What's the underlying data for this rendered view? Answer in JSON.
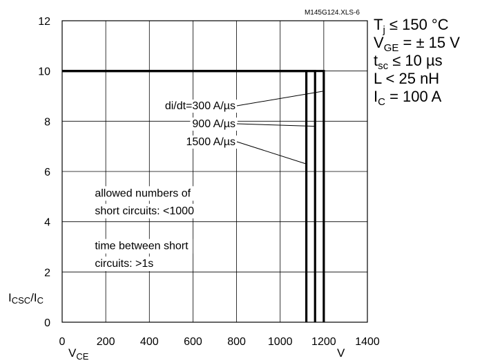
{
  "chart_data": {
    "type": "line",
    "code": "M145G124.XLS-6",
    "ylabel": {
      "main": "I",
      "sub1": "CSC",
      "mid": "/I",
      "sub2": "C"
    },
    "xlabel": {
      "main": "V",
      "sub": "CE"
    },
    "xunit": "V",
    "xlim": [
      0,
      1400
    ],
    "ylim": [
      0,
      12
    ],
    "xticks": [
      0,
      200,
      400,
      600,
      800,
      1000,
      1200,
      1400
    ],
    "yticks": [
      0,
      2,
      4,
      6,
      8,
      10,
      12
    ],
    "grid": true,
    "series": [
      {
        "name": "di/dt=300 A/µs",
        "x": [
          0,
          1200,
          1200
        ],
        "y": [
          10,
          10,
          0
        ]
      },
      {
        "name": "900 A/µs",
        "x": [
          0,
          1160,
          1160
        ],
        "y": [
          10,
          10,
          0
        ]
      },
      {
        "name": "1500 A/µs",
        "x": [
          0,
          1120,
          1120
        ],
        "y": [
          10,
          10,
          0
        ]
      }
    ],
    "annotations": [
      {
        "text": "allowed numbers of",
        "x": 150,
        "y": 5.0
      },
      {
        "text": "short circuits: <1000",
        "x": 150,
        "y": 4.3
      },
      {
        "text": "time between short",
        "x": 150,
        "y": 2.9
      },
      {
        "text": "circuits: >1s",
        "x": 150,
        "y": 2.2
      }
    ],
    "line_color": "#000000"
  },
  "conditions": {
    "tj": {
      "main": "T",
      "sub": "j",
      "rest": " ≤ 150 °C"
    },
    "vge": {
      "main": "V",
      "sub": "GE",
      "rest": " = ± 15 V"
    },
    "tsc": {
      "main": "t",
      "sub": "sc",
      "rest": " ≤ 10 µs"
    },
    "l": {
      "text": "L < 25 nH"
    },
    "ic": {
      "main": "I",
      "sub": "C",
      "rest": " = 100 A"
    }
  }
}
